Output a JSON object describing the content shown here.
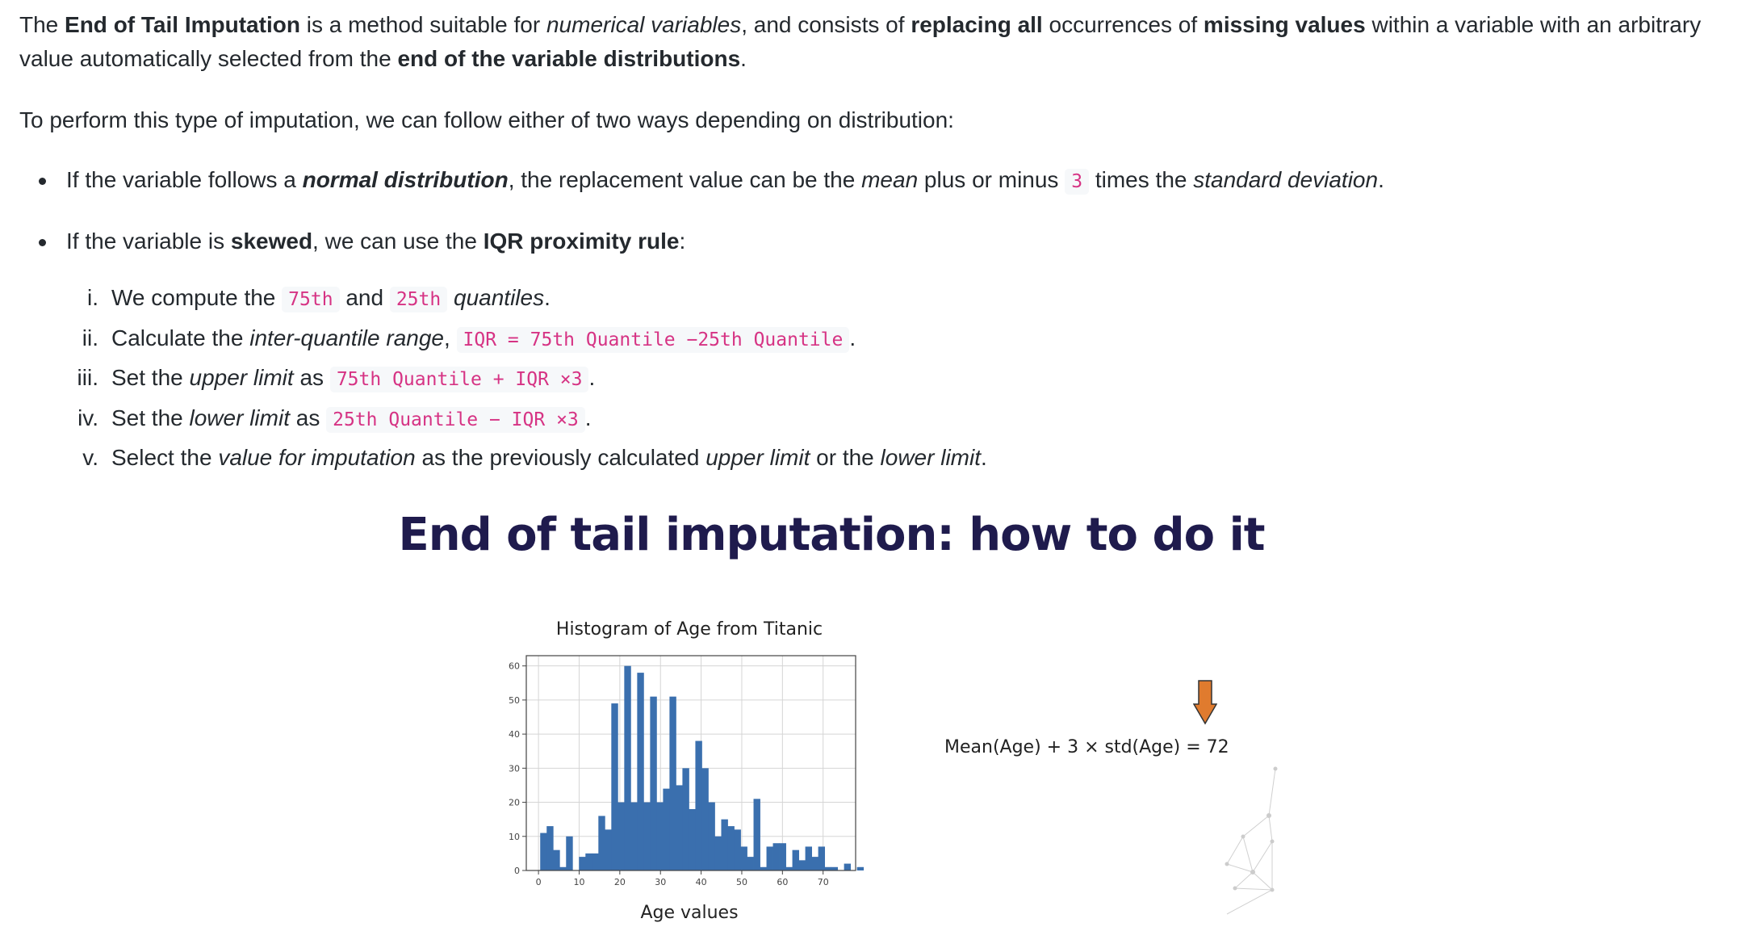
{
  "intro": {
    "s1": "The ",
    "b1": "End of Tail Imputation",
    "s2": " is a method suitable for ",
    "i1": "numerical variables",
    "s3": ", and consists of ",
    "b2": "replacing all",
    "s4": " occurrences of ",
    "b3": "missing values",
    "s5": " within a variable with an arbitrary value automatically selected from the ",
    "b4": "end of the variable distributions",
    "s6": "."
  },
  "lead": "To perform this type of imputation, we can follow either of two ways depending on distribution:",
  "bullet1": {
    "s1": "If the variable follows a ",
    "bi": "normal distribution",
    "s2": ", the replacement value can be the ",
    "i1": "mean",
    "s3": " plus or minus ",
    "code": "3",
    "s4": " times the ",
    "i2": "standard deviation",
    "s5": "."
  },
  "bullet2": {
    "s1": "If the variable is ",
    "b1": "skewed",
    "s2": ", we can use the ",
    "b2": "IQR proximity rule",
    "s3": ":"
  },
  "steps": [
    {
      "num": "i.",
      "s1": "We compute the ",
      "c1": "75th",
      "s2": " and ",
      "c2": "25th",
      "s3": " ",
      "i1": "quantiles",
      "s4": "."
    },
    {
      "num": "ii.",
      "s1": "Calculate the ",
      "i1": "inter-quantile range",
      "s2": ", ",
      "c1": "IQR = 75th Quantile −25th Quantile",
      "s3": "."
    },
    {
      "num": "iii.",
      "s1": "Set the ",
      "i1": "upper limit",
      "s2": " as ",
      "c1": "75th Quantile + IQR ×3",
      "s3": "."
    },
    {
      "num": "iv.",
      "s1": "Set the ",
      "i1": "lower limit",
      "s2": " as ",
      "c1": "25th Quantile − IQR ×3",
      "s3": "."
    },
    {
      "num": "v.",
      "s1": "Select the ",
      "i1": "value for imputation",
      "s2": " as the previously calculated ",
      "i2": "upper limit",
      "s3": " or the ",
      "i3": "lower limit",
      "s4": "."
    }
  ],
  "slide": {
    "title": "End of tail imputation: how to do it",
    "formula": "Mean(Age) + 3 × std(Age) = 72",
    "arrow_color": "#e07b2e"
  },
  "chart_data": {
    "type": "bar",
    "title": "Histogram of Age from Titanic",
    "xlabel": "Age values",
    "ylabel": "",
    "bar_color": "#3a6fae",
    "xlim": [
      -3,
      78
    ],
    "ylim": [
      0,
      63
    ],
    "xticks": [
      0,
      10,
      20,
      30,
      40,
      50,
      60,
      70
    ],
    "yticks": [
      0,
      10,
      20,
      30,
      40,
      50,
      60
    ],
    "grid": true,
    "bin_start": 0.42,
    "bin_width": 1.59,
    "values": [
      11,
      13,
      6,
      1,
      10,
      0,
      4,
      5,
      5,
      16,
      12,
      49,
      20,
      60,
      20,
      58,
      20,
      51,
      20,
      24,
      51,
      25,
      30,
      18,
      38,
      30,
      20,
      10,
      15,
      13,
      12,
      7,
      4,
      21,
      1,
      7,
      8,
      8,
      1,
      6,
      3,
      7,
      4,
      7,
      1,
      1,
      0,
      2,
      0,
      1
    ]
  }
}
